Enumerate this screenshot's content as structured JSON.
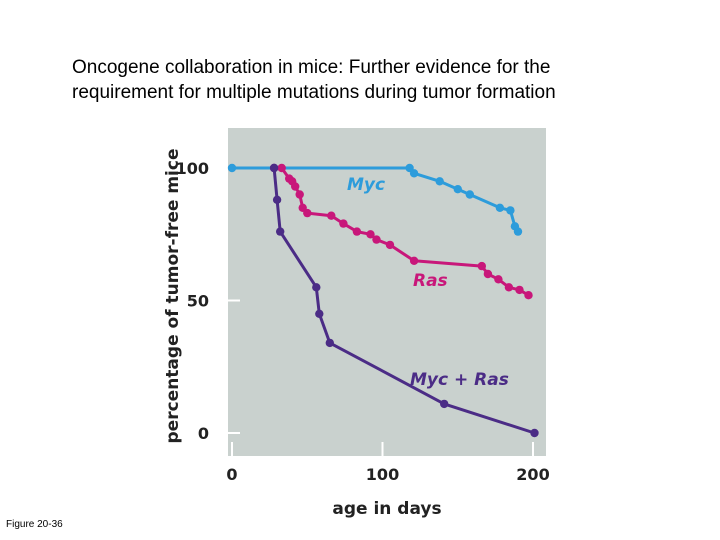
{
  "slide": {
    "title_line1": "Oncogene collaboration in mice:  Further evidence for the",
    "title_line2": "requirement for multiple mutations during tumor formation",
    "caption": "Figure 20-36"
  },
  "chart_data": {
    "type": "line",
    "title": "",
    "xlabel": "age in days",
    "ylabel": "percentage of tumor-free mice",
    "xlim": [
      0,
      200
    ],
    "ylim": [
      0,
      100
    ],
    "xticks": [
      0,
      100,
      200
    ],
    "yticks": [
      0,
      50,
      100
    ],
    "grid": false,
    "background": "#c9d1ce",
    "series": [
      {
        "name": "Myc",
        "color": "#2d9cdb",
        "points": [
          [
            0,
            100
          ],
          [
            28,
            100
          ],
          [
            118,
            100
          ],
          [
            121,
            98
          ],
          [
            138,
            95
          ],
          [
            150,
            92
          ],
          [
            158,
            90
          ],
          [
            178,
            85
          ],
          [
            185,
            84
          ],
          [
            188,
            78
          ],
          [
            190,
            76
          ]
        ]
      },
      {
        "name": "Ras",
        "color": "#c8177a",
        "points": [
          [
            28,
            100
          ],
          [
            33,
            100
          ],
          [
            38,
            96
          ],
          [
            40,
            95
          ],
          [
            42,
            93
          ],
          [
            45,
            90
          ],
          [
            47,
            85
          ],
          [
            50,
            83
          ],
          [
            66,
            82
          ],
          [
            74,
            79
          ],
          [
            83,
            76
          ],
          [
            92,
            75
          ],
          [
            96,
            73
          ],
          [
            105,
            71
          ],
          [
            121,
            65
          ],
          [
            166,
            63
          ],
          [
            170,
            60
          ],
          [
            177,
            58
          ],
          [
            184,
            55
          ],
          [
            191,
            54
          ],
          [
            197,
            52
          ]
        ]
      },
      {
        "name": "Myc + Ras",
        "color": "#4b2c86",
        "points": [
          [
            28,
            100
          ],
          [
            30,
            88
          ],
          [
            32,
            76
          ],
          [
            56,
            55
          ],
          [
            58,
            45
          ],
          [
            65,
            34
          ],
          [
            141,
            11
          ],
          [
            201,
            0
          ]
        ]
      }
    ]
  }
}
